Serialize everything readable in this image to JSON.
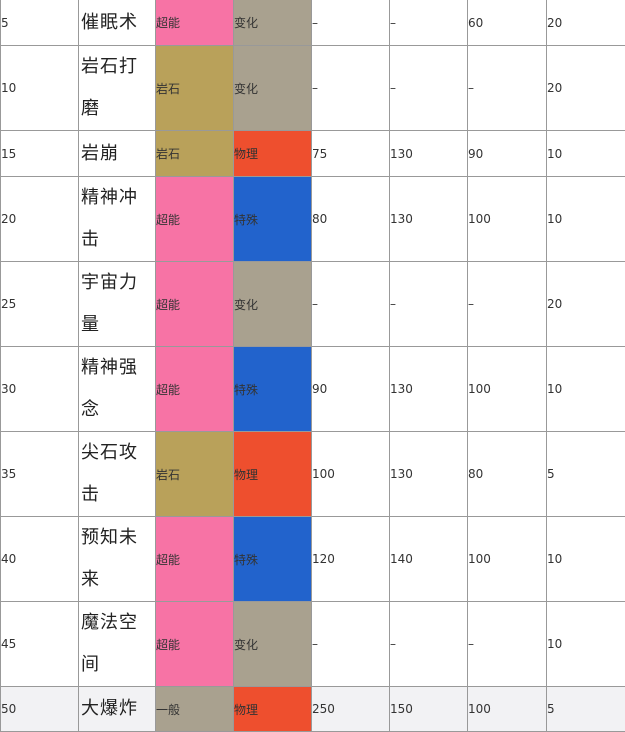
{
  "colors": {
    "type_psychic": "#f773a5",
    "type_rock": "#b9a15a",
    "type_normal": "#a9a18f",
    "cat_status": "#a9a18f",
    "cat_physical": "#ee4f2e",
    "cat_special": "#2263cc"
  },
  "moves": [
    {
      "level": "5",
      "name": "催眠术",
      "type": "超能",
      "type_color": "#f773a5",
      "category": "变化",
      "cat_color": "#a9a18f",
      "power": "–",
      "accuracy": "–",
      "pp_col": "60",
      "pp": "20"
    },
    {
      "level": "10",
      "name": "岩石打磨",
      "type": "岩石",
      "type_color": "#b9a15a",
      "category": "变化",
      "cat_color": "#a9a18f",
      "power": "–",
      "accuracy": "–",
      "pp_col": "–",
      "pp": "20"
    },
    {
      "level": "15",
      "name": "岩崩",
      "type": "岩石",
      "type_color": "#b9a15a",
      "category": "物理",
      "cat_color": "#ee4f2e",
      "power": "75",
      "accuracy": "130",
      "pp_col": "90",
      "pp": "10"
    },
    {
      "level": "20",
      "name": "精神冲击",
      "type": "超能",
      "type_color": "#f773a5",
      "category": "特殊",
      "cat_color": "#2263cc",
      "power": "80",
      "accuracy": "130",
      "pp_col": "100",
      "pp": "10"
    },
    {
      "level": "25",
      "name": "宇宙力量",
      "type": "超能",
      "type_color": "#f773a5",
      "category": "变化",
      "cat_color": "#a9a18f",
      "power": "–",
      "accuracy": "–",
      "pp_col": "–",
      "pp": "20"
    },
    {
      "level": "30",
      "name": "精神强念",
      "type": "超能",
      "type_color": "#f773a5",
      "category": "特殊",
      "cat_color": "#2263cc",
      "power": "90",
      "accuracy": "130",
      "pp_col": "100",
      "pp": "10"
    },
    {
      "level": "35",
      "name": "尖石攻击",
      "type": "岩石",
      "type_color": "#b9a15a",
      "category": "物理",
      "cat_color": "#ee4f2e",
      "power": "100",
      "accuracy": "130",
      "pp_col": "80",
      "pp": "5"
    },
    {
      "level": "40",
      "name": "预知未来",
      "type": "超能",
      "type_color": "#f773a5",
      "category": "特殊",
      "cat_color": "#2263cc",
      "power": "120",
      "accuracy": "140",
      "pp_col": "100",
      "pp": "10"
    },
    {
      "level": "45",
      "name": "魔法空间",
      "type": "超能",
      "type_color": "#f773a5",
      "category": "变化",
      "cat_color": "#a9a18f",
      "power": "–",
      "accuracy": "–",
      "pp_col": "–",
      "pp": "10"
    },
    {
      "level": "50",
      "name": "大爆炸",
      "type": "一般",
      "type_color": "#a9a18f",
      "category": "物理",
      "cat_color": "#ee4f2e",
      "power": "250",
      "accuracy": "150",
      "pp_col": "100",
      "pp": "5"
    }
  ]
}
